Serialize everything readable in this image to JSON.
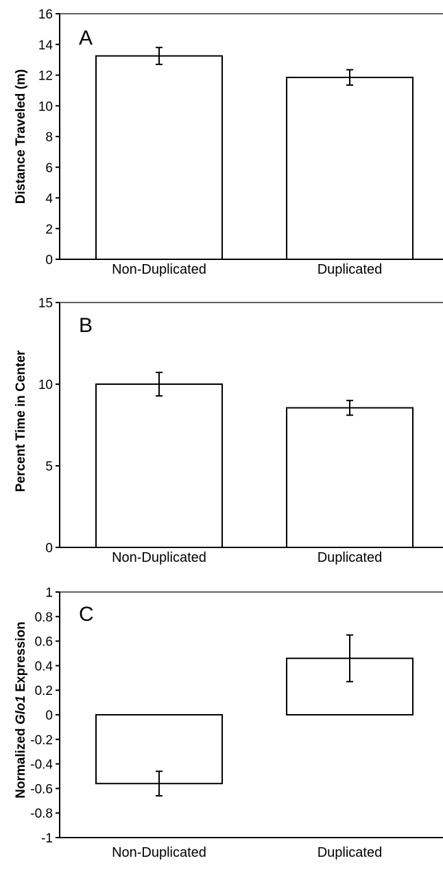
{
  "chart_data": [
    {
      "panel": "A",
      "type": "bar",
      "ylabel": "Distance Traveled (m)",
      "categories": [
        "Non-Duplicated",
        "Duplicated"
      ],
      "values": [
        13.25,
        11.85
      ],
      "errors": [
        0.55,
        0.5
      ],
      "ylim": [
        0,
        16
      ],
      "yticks": [
        0,
        2,
        4,
        6,
        8,
        10,
        12,
        14,
        16
      ],
      "ytick_labels": [
        "0",
        "2",
        "4",
        "6",
        "8",
        "10",
        "12",
        "14",
        "16"
      ],
      "grid": false
    },
    {
      "panel": "B",
      "type": "bar",
      "ylabel": "Percent Time in Center",
      "categories": [
        "Non-Duplicated",
        "Duplicated"
      ],
      "values": [
        10.0,
        8.55
      ],
      "errors": [
        0.72,
        0.45
      ],
      "ylim": [
        0,
        15
      ],
      "yticks": [
        0,
        5,
        10,
        15
      ],
      "ytick_labels": [
        "0",
        "5",
        "10",
        "15"
      ],
      "grid": false
    },
    {
      "panel": "C",
      "type": "bar",
      "ylabel_parts": [
        "Normalized ",
        "Glo1",
        " Expression"
      ],
      "categories": [
        "Non-Duplicated",
        "Duplicated"
      ],
      "values": [
        -0.56,
        0.46
      ],
      "errors": [
        0.1,
        0.19
      ],
      "ylim": [
        -1,
        1
      ],
      "yticks": [
        -1,
        -0.8,
        -0.6,
        -0.4,
        -0.2,
        0,
        0.2,
        0.4,
        0.6,
        0.8,
        1
      ],
      "ytick_labels": [
        "-1",
        "-0.8",
        "-0.6",
        "-0.4",
        "-0.2",
        "0",
        "0.2",
        "0.4",
        "0.6",
        "0.8",
        "1"
      ],
      "grid": false
    }
  ]
}
